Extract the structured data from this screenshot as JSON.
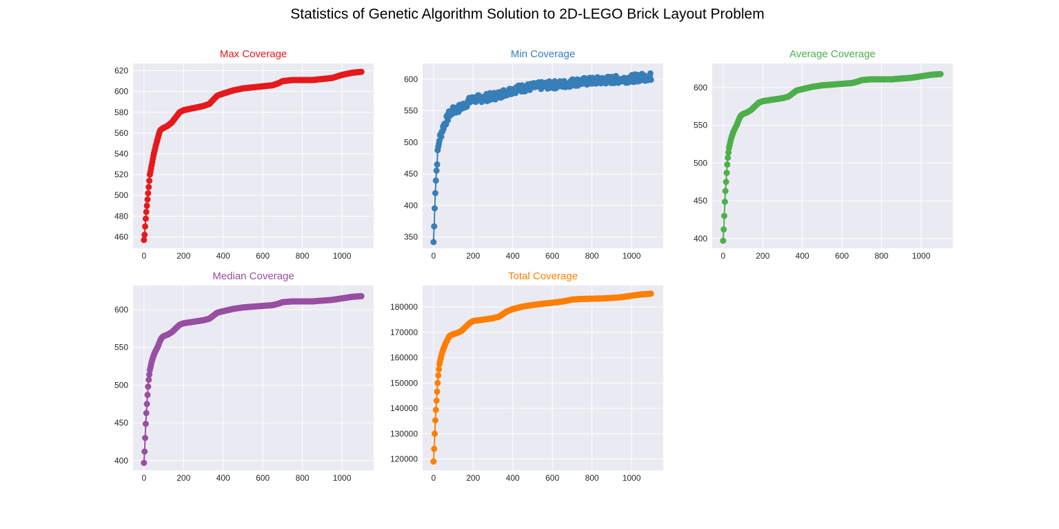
{
  "figure": {
    "title": "Statistics of Genetic Algorithm Solution to 2D-LEGO Brick Layout Problem",
    "background": "#ffffff",
    "plot_background": "#eaeaf2",
    "grid_color": "#ffffff",
    "style": "seaborn-whitegrid style, 2 rows x 3 columns, last cell empty"
  },
  "chart_data": [
    {
      "type": "line",
      "marker": "circle",
      "title": "Max Coverage",
      "color": "#e41a1c",
      "xlabel": "",
      "ylabel": "",
      "xlim": [
        -55,
        1160
      ],
      "ylim": [
        449,
        627
      ],
      "xticks": [
        0,
        200,
        400,
        600,
        800,
        1000
      ],
      "yticks": [
        460,
        480,
        500,
        520,
        540,
        560,
        580,
        600,
        620
      ],
      "grid": true,
      "noise": 0,
      "x": [
        0,
        3,
        6,
        10,
        15,
        20,
        25,
        30,
        40,
        50,
        60,
        70,
        80,
        90,
        100,
        120,
        140,
        160,
        180,
        200,
        250,
        300,
        330,
        350,
        370,
        400,
        450,
        500,
        550,
        600,
        650,
        680,
        700,
        750,
        800,
        850,
        900,
        950,
        1000,
        1050,
        1100
      ],
      "y": [
        457,
        462,
        470,
        480,
        490,
        500,
        510,
        520,
        530,
        540,
        548,
        555,
        562,
        564,
        565,
        567,
        570,
        575,
        580,
        582,
        584,
        586,
        588,
        592,
        596,
        598,
        601,
        603,
        604,
        605,
        606,
        608,
        610,
        611,
        611,
        611,
        612,
        613,
        616,
        618,
        619
      ]
    },
    {
      "type": "line",
      "marker": "circle",
      "title": "Min Coverage",
      "color": "#377eb8",
      "xlabel": "",
      "ylabel": "",
      "xlim": [
        -55,
        1160
      ],
      "ylim": [
        332,
        625
      ],
      "xticks": [
        0,
        200,
        400,
        600,
        800,
        1000
      ],
      "yticks": [
        350,
        400,
        450,
        500,
        550,
        600
      ],
      "grid": true,
      "noise": 6,
      "x": [
        0,
        3,
        6,
        10,
        15,
        20,
        25,
        30,
        40,
        50,
        60,
        70,
        80,
        90,
        100,
        120,
        140,
        160,
        180,
        200,
        250,
        300,
        330,
        350,
        370,
        400,
        450,
        500,
        550,
        600,
        650,
        680,
        700,
        750,
        800,
        850,
        900,
        950,
        1000,
        1050,
        1100
      ],
      "y": [
        342,
        366,
        400,
        430,
        455,
        480,
        495,
        505,
        515,
        525,
        532,
        538,
        545,
        548,
        550,
        552,
        556,
        560,
        565,
        568,
        570,
        573,
        575,
        578,
        580,
        583,
        586,
        588,
        590,
        591,
        592,
        593,
        595,
        596,
        597,
        598,
        599,
        600,
        601,
        603,
        604
      ]
    },
    {
      "type": "line",
      "marker": "circle",
      "title": "Average Coverage",
      "color": "#4daf4a",
      "xlabel": "",
      "ylabel": "",
      "xlim": [
        -55,
        1160
      ],
      "ylim": [
        387,
        632
      ],
      "xticks": [
        0,
        200,
        400,
        600,
        800,
        1000
      ],
      "yticks": [
        400,
        450,
        500,
        550,
        600
      ],
      "grid": true,
      "noise": 0,
      "x": [
        0,
        3,
        6,
        10,
        15,
        20,
        25,
        30,
        40,
        50,
        60,
        70,
        80,
        90,
        100,
        120,
        140,
        160,
        180,
        200,
        250,
        300,
        330,
        350,
        370,
        400,
        450,
        500,
        550,
        600,
        650,
        680,
        700,
        750,
        800,
        850,
        900,
        950,
        1000,
        1050,
        1100
      ],
      "y": [
        397,
        412,
        430,
        455,
        475,
        495,
        510,
        520,
        532,
        540,
        546,
        551,
        558,
        563,
        565,
        567,
        570,
        575,
        580,
        582,
        584,
        586,
        588,
        592,
        596,
        598,
        601,
        603,
        604,
        605,
        606,
        608,
        610,
        611,
        611,
        611,
        612,
        613,
        615,
        617,
        618
      ]
    },
    {
      "type": "line",
      "marker": "circle",
      "title": "Median Coverage",
      "color": "#984ea3",
      "xlabel": "",
      "ylabel": "",
      "xlim": [
        -55,
        1160
      ],
      "ylim": [
        387,
        632
      ],
      "xticks": [
        0,
        200,
        400,
        600,
        800,
        1000
      ],
      "yticks": [
        400,
        450,
        500,
        550,
        600
      ],
      "grid": true,
      "noise": 0,
      "x": [
        0,
        3,
        6,
        10,
        15,
        20,
        25,
        30,
        40,
        50,
        60,
        70,
        80,
        90,
        100,
        120,
        140,
        160,
        180,
        200,
        250,
        300,
        330,
        350,
        370,
        400,
        450,
        500,
        550,
        600,
        650,
        680,
        700,
        750,
        800,
        850,
        900,
        950,
        1000,
        1050,
        1100
      ],
      "y": [
        397,
        412,
        430,
        455,
        475,
        495,
        510,
        520,
        532,
        540,
        546,
        551,
        558,
        563,
        565,
        567,
        570,
        575,
        580,
        582,
        584,
        586,
        588,
        592,
        596,
        598,
        601,
        603,
        604,
        605,
        606,
        608,
        610,
        611,
        611,
        611,
        612,
        613,
        615,
        617,
        618
      ]
    },
    {
      "type": "line",
      "marker": "circle",
      "title": "Total Coverage",
      "color": "#ff7f00",
      "xlabel": "",
      "ylabel": "",
      "xlim": [
        -55,
        1160
      ],
      "ylim": [
        115500,
        188500
      ],
      "xticks": [
        0,
        200,
        400,
        600,
        800,
        1000
      ],
      "yticks": [
        120000,
        130000,
        140000,
        150000,
        160000,
        170000,
        180000
      ],
      "grid": true,
      "noise": 0,
      "x": [
        0,
        3,
        6,
        10,
        15,
        20,
        25,
        30,
        40,
        50,
        60,
        70,
        80,
        90,
        100,
        120,
        140,
        160,
        180,
        200,
        250,
        300,
        330,
        350,
        370,
        400,
        450,
        500,
        550,
        600,
        650,
        680,
        700,
        750,
        800,
        850,
        900,
        950,
        1000,
        1050,
        1100
      ],
      "y": [
        119000,
        124000,
        130000,
        137000,
        143000,
        149000,
        154000,
        157500,
        161000,
        163500,
        165500,
        167000,
        168500,
        169000,
        169300,
        169800,
        170500,
        172000,
        173500,
        174500,
        175000,
        175600,
        176200,
        177200,
        178300,
        179200,
        180200,
        180800,
        181300,
        181700,
        182200,
        182600,
        183000,
        183200,
        183300,
        183400,
        183600,
        183900,
        184500,
        185000,
        185300
      ]
    }
  ]
}
